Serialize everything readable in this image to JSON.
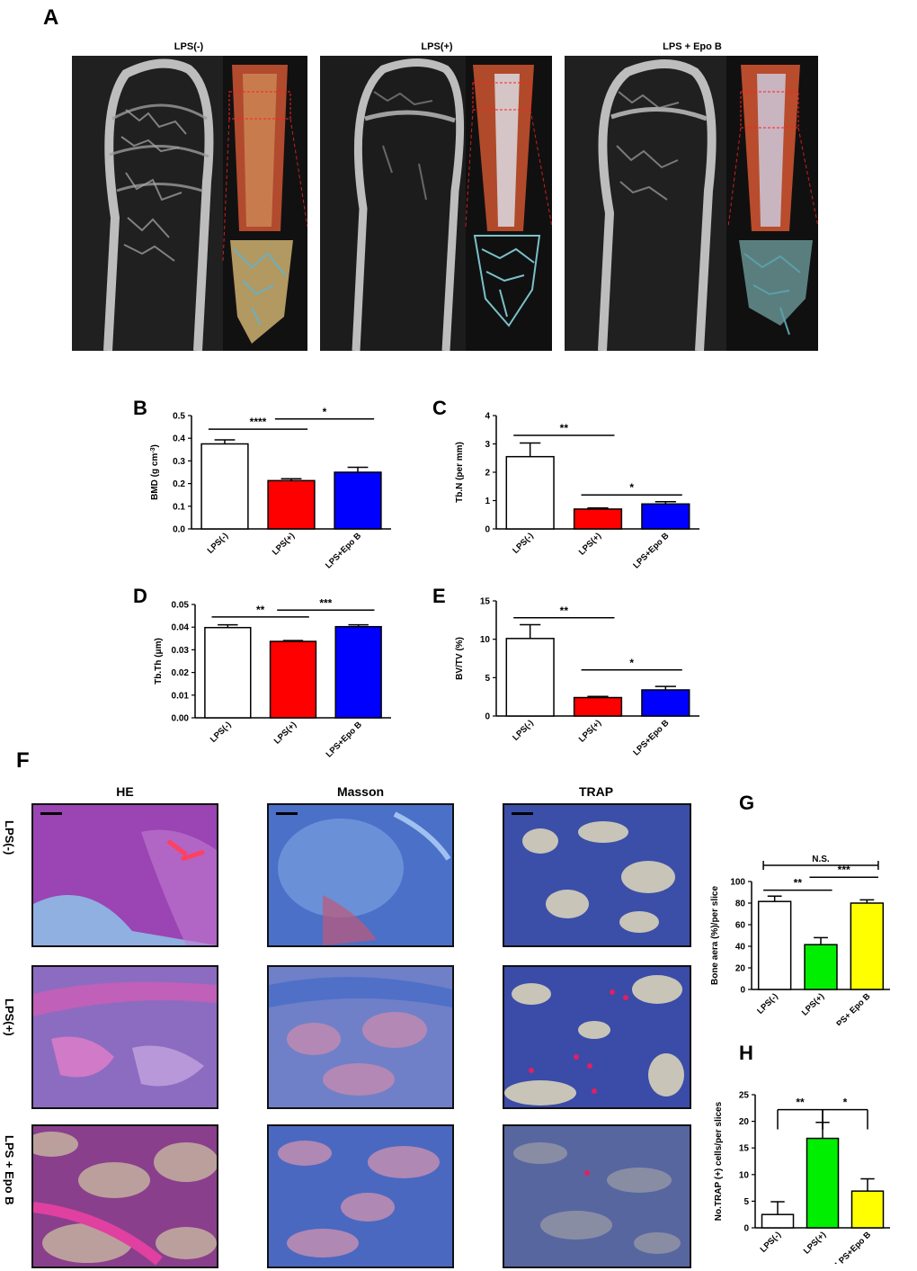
{
  "panel_letters": {
    "A": "A",
    "B": "B",
    "C": "C",
    "D": "D",
    "E": "E",
    "F": "F",
    "G": "G",
    "H": "H"
  },
  "panel_a": {
    "titles": [
      "LPS(-)",
      "LPS(+)",
      "LPS + Epo B"
    ]
  },
  "panel_f": {
    "columns": [
      "HE",
      "Masson",
      "TRAP"
    ],
    "rows": [
      "LPS(-)",
      "LPS(+)",
      "LPS + Epo B"
    ]
  },
  "colors": {
    "white": "#ffffff",
    "red": "#ff0000",
    "blue": "#0000ff",
    "green": "#00ee00",
    "yellow": "#ffff00"
  },
  "chart_data": [
    {
      "id": "B",
      "type": "bar",
      "categories": [
        "LPS(-)",
        "LPS(+)",
        "LPS+Epo B"
      ],
      "values": [
        0.375,
        0.213,
        0.25
      ],
      "errors": [
        0.018,
        0.008,
        0.022
      ],
      "colors": [
        "#ffffff",
        "#ff0000",
        "#0000ff"
      ],
      "ylabel": "BMD (g cm-3)",
      "ylabel_parts": {
        "main": "BMD (g cm",
        "sup": "-3",
        "end": ")"
      },
      "ylim": [
        0,
        0.5
      ],
      "yticks": [
        "0.0",
        "0.1",
        "0.2",
        "0.3",
        "0.4",
        "0.5"
      ],
      "sig": [
        {
          "from": 0,
          "to": 1,
          "label": "****",
          "y": 0.44
        },
        {
          "from": 1,
          "to": 2,
          "label": "*",
          "y": 0.485
        }
      ]
    },
    {
      "id": "C",
      "type": "bar",
      "categories": [
        "LPS(-)",
        "LPS(+)",
        "LPS+Epo B"
      ],
      "values": [
        2.55,
        0.7,
        0.88
      ],
      "errors": [
        0.48,
        0.04,
        0.08
      ],
      "colors": [
        "#ffffff",
        "#ff0000",
        "#0000ff"
      ],
      "ylabel": "Tb.N (per mm)",
      "ylim": [
        0,
        4
      ],
      "yticks": [
        "0",
        "1",
        "2",
        "3",
        "4"
      ],
      "sig": [
        {
          "from": 0,
          "to": 1,
          "label": "**",
          "y": 3.3
        },
        {
          "from": 1,
          "to": 2,
          "label": "*",
          "y": 1.2
        }
      ]
    },
    {
      "id": "D",
      "type": "bar",
      "categories": [
        "LPS(-)",
        "LPS(+)",
        "LPS+Epo B"
      ],
      "values": [
        0.0398,
        0.0337,
        0.0402
      ],
      "errors": [
        0.0012,
        0.0004,
        0.0008
      ],
      "colors": [
        "#ffffff",
        "#ff0000",
        "#0000ff"
      ],
      "ylabel": "Tb.Th (μm)",
      "ylim": [
        0,
        0.05
      ],
      "yticks": [
        "0.00",
        "0.01",
        "0.02",
        "0.03",
        "0.04",
        "0.05"
      ],
      "sig": [
        {
          "from": 0,
          "to": 1,
          "label": "**",
          "y": 0.0445
        },
        {
          "from": 1,
          "to": 2,
          "label": "***",
          "y": 0.0475
        }
      ]
    },
    {
      "id": "E",
      "type": "bar",
      "categories": [
        "LPS(-)",
        "LPS(+)",
        "LPS+Epo B"
      ],
      "values": [
        10.1,
        2.4,
        3.4
      ],
      "errors": [
        1.8,
        0.15,
        0.45
      ],
      "colors": [
        "#ffffff",
        "#ff0000",
        "#0000ff"
      ],
      "ylabel": "BV/TV (%)",
      "ylim": [
        0,
        15
      ],
      "yticks": [
        "0",
        "5",
        "10",
        "15"
      ],
      "sig": [
        {
          "from": 0,
          "to": 1,
          "label": "**",
          "y": 12.8
        },
        {
          "from": 1,
          "to": 2,
          "label": "*",
          "y": 6.0
        }
      ]
    },
    {
      "id": "G",
      "type": "bar",
      "categories": [
        "LPS(-)",
        "LPS(+)",
        "LPS+ Epo B"
      ],
      "values": [
        81.5,
        41.5,
        80
      ],
      "errors": [
        5,
        6.5,
        3
      ],
      "colors": [
        "#ffffff",
        "#00ee00",
        "#ffff00"
      ],
      "ylabel": "Bone aera (%)/per slice",
      "ylim": [
        0,
        100
      ],
      "yticks": [
        "0",
        "20",
        "40",
        "60",
        "80",
        "100"
      ],
      "sig": [
        {
          "from": 0,
          "to": 1,
          "label": "**",
          "y": 92
        },
        {
          "from": 1,
          "to": 2,
          "label": "***",
          "y": 104
        },
        {
          "from": 0,
          "to": 2,
          "label": "N.S.",
          "y": 115
        }
      ]
    },
    {
      "id": "H",
      "type": "bar",
      "categories": [
        "LPS(-)",
        "LPS(+)",
        "LPS+Epo B"
      ],
      "values": [
        2.5,
        16.8,
        6.9
      ],
      "errors": [
        2.4,
        3,
        2.3
      ],
      "colors": [
        "#ffffff",
        "#00ee00",
        "#ffff00"
      ],
      "ylabel": "No.TRAP (+) cells/per slices",
      "ylim": [
        0,
        25
      ],
      "yticks": [
        "0",
        "5",
        "10",
        "15",
        "20",
        "25"
      ],
      "sig": [
        {
          "from": 0,
          "to": 1,
          "label": "**",
          "y": 22.2,
          "drop": true
        },
        {
          "from": 1,
          "to": 2,
          "label": "*",
          "y": 22.2,
          "drop": true
        }
      ]
    }
  ]
}
